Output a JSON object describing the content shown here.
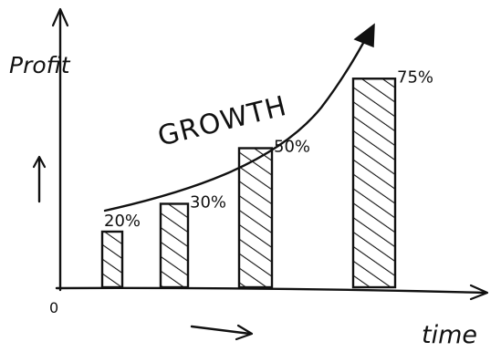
{
  "chart_data": {
    "type": "bar",
    "title": "",
    "xlabel": "time",
    "ylabel": "Profit",
    "origin_label": "0",
    "annotation": "GROWTH",
    "categories": [
      "",
      "",
      "",
      ""
    ],
    "values": [
      20,
      30,
      50,
      75
    ],
    "value_labels": [
      "20%",
      "30%",
      "50%",
      "75%"
    ],
    "ylim": [
      0,
      100
    ],
    "grid": false,
    "legend": "none",
    "bar_fill": "hatched",
    "colors": {
      "ink": "#111111",
      "background": "#ffffff"
    }
  }
}
